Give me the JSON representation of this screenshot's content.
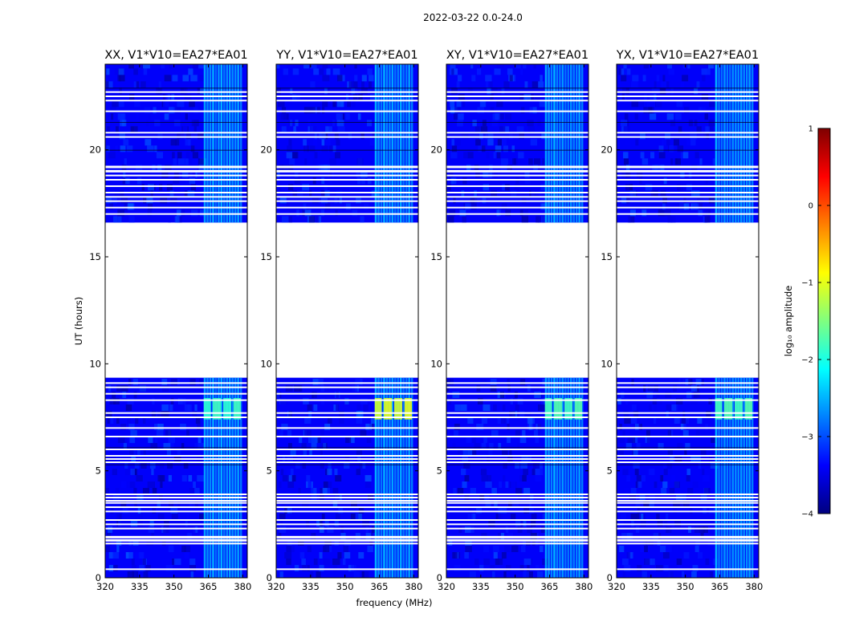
{
  "figure_title": "2022-03-22 0.0-24.0",
  "colorbar_label": "log₁₀ amplitude",
  "chart_data": {
    "type": "heatmap",
    "title": "2022-03-22 0.0-24.0",
    "xlabel": "frequency (MHz)",
    "ylabel": "UT (hours)",
    "xlim": [
      320,
      382
    ],
    "ylim": [
      0,
      24
    ],
    "x_ticks": [
      320,
      335,
      350,
      365,
      380
    ],
    "y_ticks": [
      0,
      5,
      10,
      15,
      20
    ],
    "colorbar": {
      "label": "log10 amplitude",
      "range": [
        -4,
        1
      ],
      "ticks": [
        -4,
        -3,
        -2,
        -1,
        0,
        1
      ],
      "colormap": "jet"
    },
    "panels": [
      {
        "title": "XX, V1*V10=EA27*EA01",
        "pol": "XX"
      },
      {
        "title": "YY, V1*V10=EA27*EA01",
        "pol": "YY"
      },
      {
        "title": "XY, V1*V10=EA27*EA01",
        "pol": "XY"
      },
      {
        "title": "YX, V1*V10=EA27*EA01",
        "pol": "YX"
      }
    ],
    "data_blocks_ut": [
      [
        0,
        9.35
      ],
      [
        16.6,
        24
      ]
    ],
    "gap_ut": [
      9.35,
      16.6
    ],
    "flagged_rows_ut": [
      0.4,
      1.6,
      1.75,
      1.9,
      2.3,
      2.5,
      2.7,
      3.1,
      3.3,
      3.5,
      3.6,
      3.75,
      3.9,
      5.4,
      5.55,
      5.7,
      6.0,
      6.6,
      7.0,
      7.5,
      7.7,
      8.3,
      8.6,
      8.9,
      9.1,
      17.0,
      17.3,
      17.6,
      17.8,
      18.0,
      18.3,
      18.6,
      18.8,
      19.0,
      19.2,
      20.6,
      20.8,
      21.8,
      22.3,
      22.5,
      22.7
    ],
    "rfi_band_mhz": [
      363,
      380
    ],
    "rfi_peak": {
      "ut": [
        7.4,
        8.4
      ],
      "log10_amplitude": {
        "XX": -1.9,
        "YY": -1.1,
        "XY": -1.8,
        "YX": -1.8
      }
    },
    "background_log10_amplitude": -3.4
  }
}
